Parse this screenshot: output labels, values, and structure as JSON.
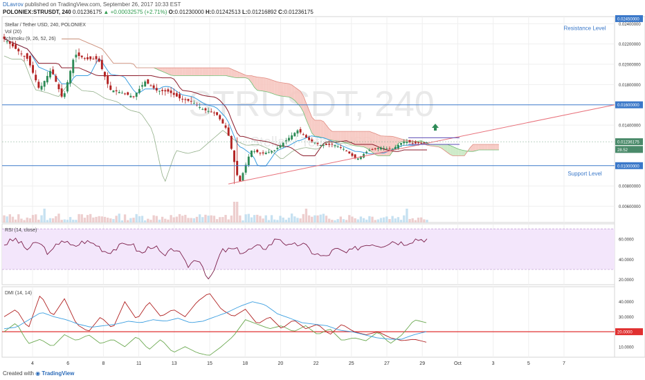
{
  "header": {
    "author": "DLavrov",
    "published": "published on TradingView.com, September 26, 2017 10:33 EST",
    "symbol": "POLONIEX:STRUSDT, 240",
    "last": "0.01236175",
    "change": "▲ +0.00032575 (+2.71%)",
    "o_label": "O:",
    "o_val": "0.01230000",
    "h_label": "H:",
    "h_val": "0.01242513",
    "l_label": "L:",
    "l_val": "0.01216892",
    "c_label": "C:",
    "c_val": "0.01236175"
  },
  "footer": {
    "created_with": "Created with",
    "brand": "TradingView"
  },
  "chart_data": [
    {
      "type": "candlestick",
      "pane": "main",
      "legend": [
        "Stellar / Tether USD, 240, POLONIEX",
        "Vol (20)",
        "Ichimoku (9, 26, 52, 26)"
      ],
      "watermark_main": "STRUSDT, 240",
      "watermark_sub": "Stellar / Tether USD",
      "ylim": [
        0.0044,
        0.0247
      ],
      "y_ticks": [
        "0.02400000",
        "0.02200000",
        "0.02000000",
        "0.01800000",
        "0.01400000",
        "0.00800000",
        "0.00600000"
      ],
      "x_ticks": [
        "4",
        "6",
        "8",
        "11",
        "13",
        "15",
        "18",
        "20",
        "22",
        "25",
        "27",
        "29",
        "Oct",
        "3",
        "5",
        "7"
      ],
      "price_labels": [
        {
          "label": "0.02450000",
          "value": 0.0245,
          "color": "#3a78c9"
        },
        {
          "label": "0.01600000",
          "value": 0.016,
          "color": "#3a78c9"
        },
        {
          "label": "0.01236175",
          "value": 0.01236175,
          "color": "#4a8a6a"
        },
        {
          "label": "28.52",
          "value": 0.0116,
          "color": "#4a8a6a"
        },
        {
          "label": "0.01000000",
          "value": 0.01,
          "color": "#3a78c9"
        }
      ],
      "annotations": [
        {
          "text": "Resistance Level",
          "level": 0.016
        },
        {
          "text": "Support Level",
          "level": 0.01
        }
      ],
      "candle_anchors": [
        0.0225,
        0.0215,
        0.0205,
        0.0175,
        0.0195,
        0.0165,
        0.021,
        0.0205,
        0.0205,
        0.0175,
        0.0172,
        0.0168,
        0.0183,
        0.0174,
        0.0173,
        0.0166,
        0.0163,
        0.0155,
        0.0152,
        0.0135,
        0.0082,
        0.0115,
        0.0112,
        0.0115,
        0.0125,
        0.0135,
        0.0125,
        0.012,
        0.0121,
        0.0116,
        0.0106,
        0.0115,
        0.0118,
        0.0116,
        0.0124,
        0.0122,
        0.0123
      ]
    },
    {
      "type": "line",
      "pane": "rsi",
      "title": "RSI (14, close)",
      "ylim": [
        15,
        75
      ],
      "y_ticks": [
        "60.0000",
        "40.0000",
        "20.0000"
      ],
      "band": [
        30,
        70
      ],
      "anchors": [
        55,
        60,
        50,
        57,
        45,
        60,
        52,
        58,
        55,
        47,
        52,
        57,
        45,
        55,
        42,
        52,
        33,
        42,
        18,
        48,
        50,
        47,
        52,
        52,
        62,
        52,
        56,
        47,
        42,
        50,
        46,
        52,
        56,
        54,
        58,
        56,
        60,
        60
      ]
    },
    {
      "type": "line",
      "pane": "dmi",
      "title": "DMI (14, 14)",
      "ylim": [
        3,
        50
      ],
      "y_ticks": [
        "40.0000",
        "30.0000",
        "10.0000"
      ],
      "level": 20,
      "level_label": "20.0000",
      "series_anchors": {
        "plus_di": [
          20,
          26,
          12,
          15,
          10,
          18,
          14,
          18,
          12,
          15,
          10,
          17,
          8,
          15,
          6,
          10,
          6,
          4,
          10,
          17,
          28,
          25,
          22,
          24,
          20,
          24,
          18,
          22,
          14,
          16,
          14,
          20,
          12,
          18,
          28,
          26
        ],
        "minus_di": [
          30,
          35,
          22,
          45,
          30,
          42,
          25,
          20,
          30,
          22,
          40,
          28,
          40,
          30,
          35,
          30,
          40,
          46,
          35,
          30,
          35,
          25,
          30,
          22,
          28,
          22,
          25,
          18,
          25,
          20,
          18,
          20,
          16,
          14,
          15,
          13
        ],
        "adx": [
          22,
          23,
          28,
          33,
          30,
          28,
          25,
          23,
          24,
          25,
          27,
          26,
          28,
          27,
          29,
          26,
          27,
          30,
          33,
          37,
          40,
          38,
          32,
          29,
          26,
          25,
          24,
          21,
          20,
          18,
          16,
          15,
          15,
          18,
          20
        ]
      }
    }
  ]
}
